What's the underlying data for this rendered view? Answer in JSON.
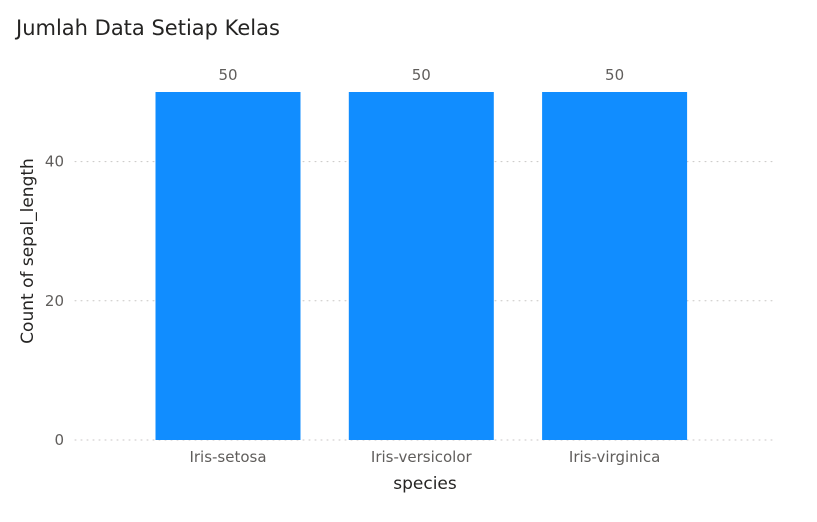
{
  "chart_data": {
    "type": "bar",
    "title": "Jumlah Data Setiap Kelas",
    "xlabel": "species",
    "ylabel": "Count of sepal_length",
    "categories": [
      "Iris-setosa",
      "Iris-versicolor",
      "Iris-virginica"
    ],
    "values": [
      50,
      50,
      50
    ],
    "data_labels": [
      "50",
      "50",
      "50"
    ],
    "ylim": [
      0,
      50
    ],
    "yticks": [
      0,
      20,
      40
    ],
    "grid": true,
    "legend": "none",
    "bar_color": "#118DFF"
  }
}
